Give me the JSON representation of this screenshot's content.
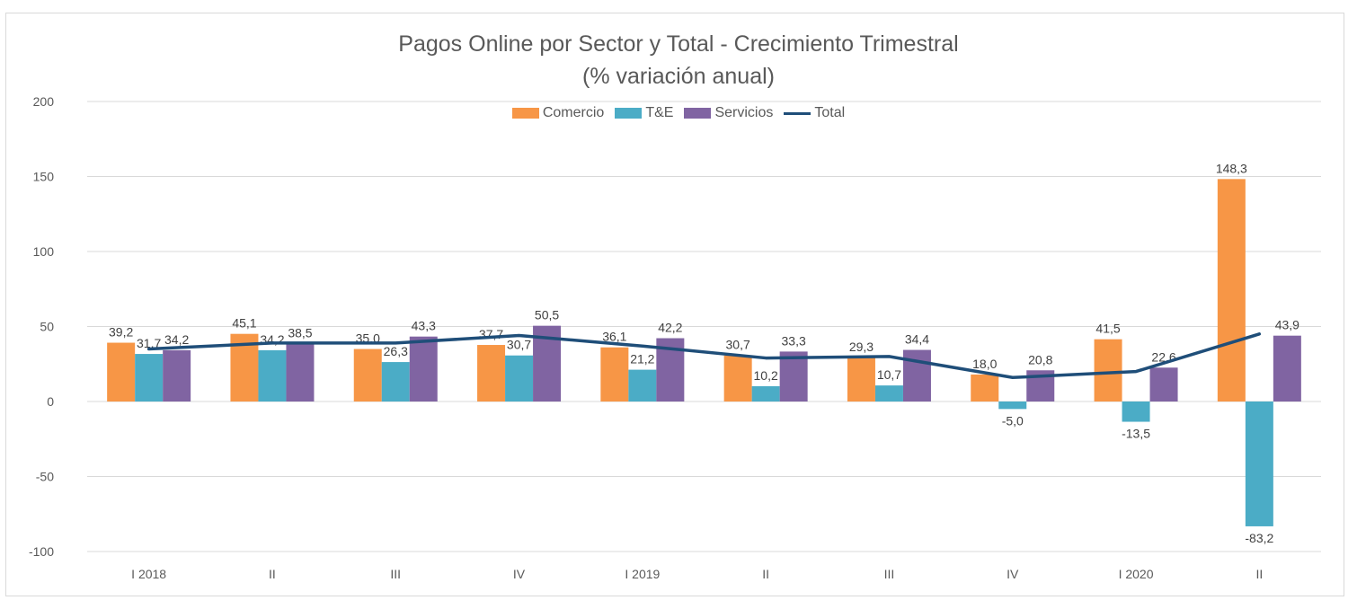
{
  "chart_data": {
    "type": "bar",
    "title": "Pagos Online por Sector y Total - Crecimiento Trimestral",
    "subtitle": "(%  variación anual)",
    "categories": [
      "I 2018",
      "II",
      "III",
      "IV",
      "I 2019",
      "II",
      "III",
      "IV",
      "I 2020",
      "II"
    ],
    "series": [
      {
        "name": "Comercio",
        "type": "bar",
        "color": "#F79646",
        "values": [
          39.2,
          45.1,
          35.0,
          37.7,
          36.1,
          30.7,
          29.3,
          18.0,
          41.5,
          148.3
        ],
        "labels": [
          "39,2",
          "45,1",
          "35,0",
          "37,7",
          "36,1",
          "30,7",
          "29,3",
          "18,0",
          "41,5",
          "148,3"
        ]
      },
      {
        "name": "T&E",
        "type": "bar",
        "color": "#4BACC6",
        "values": [
          31.7,
          34.2,
          26.3,
          30.7,
          21.2,
          10.2,
          10.7,
          -5.0,
          -13.5,
          -83.2
        ],
        "labels": [
          "31,7",
          "34,2",
          "26,3",
          "30,7",
          "21,2",
          "10,2",
          "10,7",
          "-5,0",
          "-13,5",
          "-83,2"
        ]
      },
      {
        "name": "Servicios",
        "type": "bar",
        "color": "#8064A2",
        "values": [
          34.2,
          38.5,
          43.3,
          50.5,
          42.2,
          33.3,
          34.4,
          20.8,
          22.6,
          43.9
        ],
        "labels": [
          "34,2",
          "38,5",
          "43,3",
          "50,5",
          "42,2",
          "33,3",
          "34,4",
          "20,8",
          "22,6",
          "43,9"
        ]
      },
      {
        "name": "Total",
        "type": "line",
        "color": "#1F4E79",
        "values": [
          35,
          39,
          39,
          44,
          37,
          29,
          30,
          16,
          20,
          45
        ]
      }
    ],
    "ylim": [
      -100,
      200
    ],
    "yticks": [
      -100,
      -50,
      0,
      50,
      100,
      150,
      200
    ],
    "grid": true,
    "legend": "top-center"
  }
}
